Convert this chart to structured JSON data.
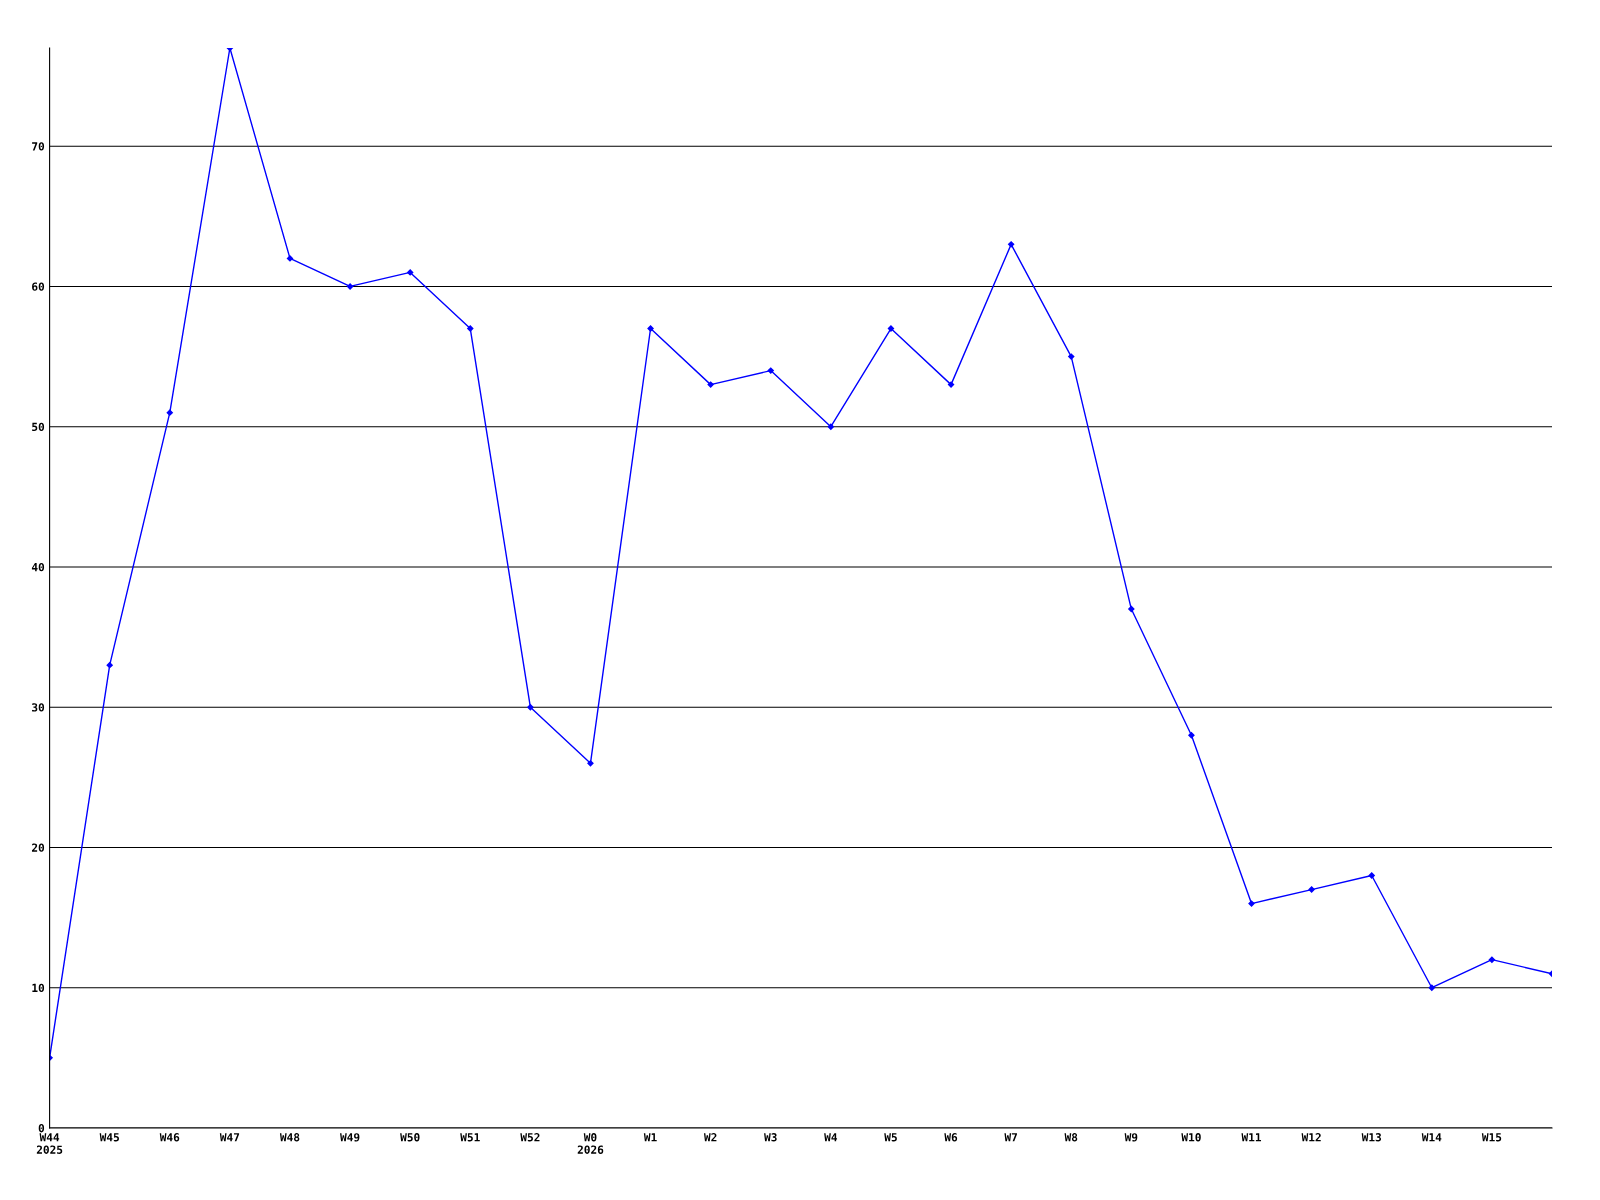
{
  "chart_data": {
    "type": "line",
    "categories": [
      "W44\n2025",
      "W45",
      "W46",
      "W47",
      "W48",
      "W49",
      "W50",
      "W51",
      "W52",
      "W0\n2026",
      "W1",
      "W2",
      "W3",
      "W4",
      "W5",
      "W6",
      "W7",
      "W8",
      "W9",
      "W10",
      "W11",
      "W12",
      "W13",
      "W14",
      "W15",
      null
    ],
    "series": [
      {
        "color": "#0000ff",
        "values": [
          5,
          33,
          51,
          77,
          62,
          60,
          61,
          57,
          30,
          26,
          57,
          53,
          54,
          50,
          57,
          53,
          63,
          55,
          37,
          28,
          16,
          17,
          18,
          10,
          12,
          11
        ]
      }
    ],
    "ylim": [
      0,
      77
    ],
    "yticks": [
      0,
      10,
      20,
      30,
      40,
      50,
      60,
      70
    ],
    "grid": "y",
    "marker": "diamond",
    "line_style": "solid"
  }
}
